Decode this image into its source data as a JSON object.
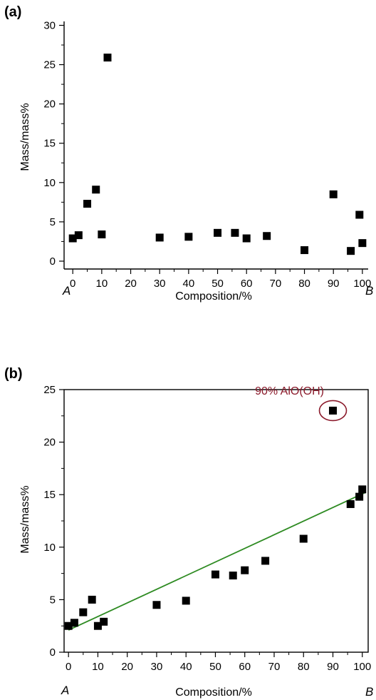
{
  "chart_data": [
    {
      "panel": "(a)",
      "type": "scatter",
      "xlabel": "Composition/%",
      "ylabel": "Mass/mass%",
      "xlim": [
        -3,
        102
      ],
      "ylim": [
        -1,
        30.5
      ],
      "xticks": [
        0,
        10,
        20,
        30,
        40,
        50,
        60,
        70,
        80,
        90,
        100
      ],
      "yticks": [
        0,
        5,
        10,
        15,
        20,
        25,
        30
      ],
      "x_end_labels": {
        "left": "A",
        "right": "B"
      },
      "series": [
        {
          "marker": "square",
          "color": "#000000",
          "points": [
            {
              "x": 0,
              "y": 2.9
            },
            {
              "x": 2,
              "y": 3.3
            },
            {
              "x": 5,
              "y": 7.3
            },
            {
              "x": 8,
              "y": 9.1
            },
            {
              "x": 10,
              "y": 3.4
            },
            {
              "x": 12,
              "y": 25.9
            },
            {
              "x": 30,
              "y": 3.0
            },
            {
              "x": 40,
              "y": 3.1
            },
            {
              "x": 50,
              "y": 3.6
            },
            {
              "x": 56,
              "y": 3.6
            },
            {
              "x": 60,
              "y": 2.9
            },
            {
              "x": 67,
              "y": 3.2
            },
            {
              "x": 80,
              "y": 1.4
            },
            {
              "x": 90,
              "y": 8.5
            },
            {
              "x": 96,
              "y": 1.3
            },
            {
              "x": 99,
              "y": 5.9
            },
            {
              "x": 100,
              "y": 2.3
            }
          ]
        }
      ]
    },
    {
      "panel": "(b)",
      "type": "scatter",
      "xlabel": "Composition/%",
      "ylabel": "Mass/mass%",
      "xlim": [
        -1.5,
        102
      ],
      "ylim": [
        0,
        25
      ],
      "xticks": [
        0,
        10,
        20,
        30,
        40,
        50,
        60,
        70,
        80,
        90,
        100
      ],
      "yticks": [
        0,
        5,
        10,
        15,
        20,
        25
      ],
      "x_end_labels": {
        "left": "A",
        "right": "B"
      },
      "annotation": {
        "text": "90% AlO(OH)",
        "x": 90,
        "y": 23.0,
        "color": "#8b1a2b"
      },
      "series": [
        {
          "marker": "square",
          "color": "#000000",
          "points": [
            {
              "x": 0,
              "y": 2.5
            },
            {
              "x": 2,
              "y": 2.8
            },
            {
              "x": 5,
              "y": 3.8
            },
            {
              "x": 8,
              "y": 5.0
            },
            {
              "x": 10,
              "y": 2.5
            },
            {
              "x": 12,
              "y": 2.9
            },
            {
              "x": 30,
              "y": 4.5
            },
            {
              "x": 40,
              "y": 4.9
            },
            {
              "x": 50,
              "y": 7.4
            },
            {
              "x": 56,
              "y": 7.3
            },
            {
              "x": 60,
              "y": 7.8
            },
            {
              "x": 67,
              "y": 8.7
            },
            {
              "x": 80,
              "y": 10.8
            },
            {
              "x": 90,
              "y": 23.0
            },
            {
              "x": 96,
              "y": 14.1
            },
            {
              "x": 99,
              "y": 14.8
            },
            {
              "x": 100,
              "y": 15.5
            }
          ]
        }
      ],
      "fit_line": {
        "color": "#2e8b22",
        "x": [
          0,
          101
        ],
        "y": [
          2.1,
          15.2
        ]
      }
    }
  ]
}
